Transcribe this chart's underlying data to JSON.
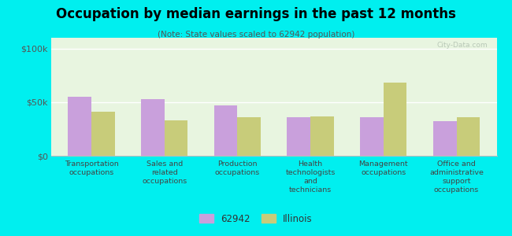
{
  "title": "Occupation by median earnings in the past 12 months",
  "subtitle": "(Note: State values scaled to 62942 population)",
  "categories": [
    "Transportation\noccupations",
    "Sales and\nrelated\noccupations",
    "Production\noccupations",
    "Health\ntechnologists\nand\ntechnicians",
    "Management\noccupations",
    "Office and\nadministrative\nsupport\noccupations"
  ],
  "values_62942": [
    55000,
    53000,
    47000,
    36000,
    36000,
    32000
  ],
  "values_illinois": [
    41000,
    33000,
    36000,
    37000,
    68000,
    36000
  ],
  "color_62942": "#c9a0dc",
  "color_illinois": "#c8cc7a",
  "background_color": "#00efef",
  "plot_bg": "#e8f5e0",
  "ylim": [
    0,
    110000
  ],
  "yticks": [
    0,
    50000,
    100000
  ],
  "ytick_labels": [
    "$0",
    "$50k",
    "$100k"
  ],
  "watermark": "City-Data.com",
  "legend_label_1": "62942",
  "legend_label_2": "Illinois",
  "bar_width": 0.32
}
